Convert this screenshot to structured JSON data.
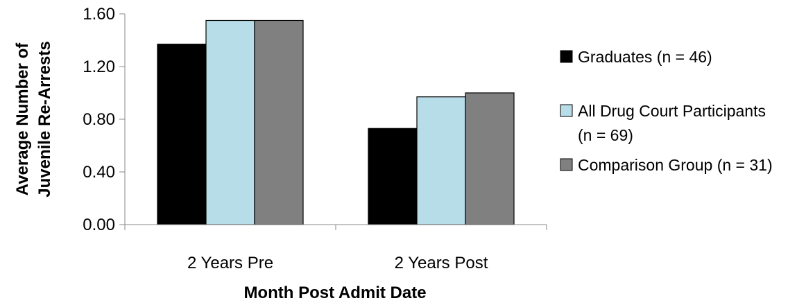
{
  "chart_data": {
    "type": "bar",
    "categories": [
      "2 Years Pre",
      "2 Years Post"
    ],
    "series": [
      {
        "name": "Graduates (n = 46)",
        "values": [
          1.37,
          0.73
        ],
        "color": "#000000"
      },
      {
        "name": "All Drug Court Participants (n = 69)",
        "legend_lines": [
          "All Drug Court Participants",
          "(n = 69)"
        ],
        "values": [
          1.55,
          0.97
        ],
        "color": "#b7dde8"
      },
      {
        "name": "Comparison Group (n = 31)",
        "values": [
          1.55,
          1.0
        ],
        "color": "#808080"
      }
    ],
    "ylim": [
      0,
      1.6
    ],
    "yticks": [
      "0.00",
      "0.40",
      "0.80",
      "1.20",
      "1.60"
    ],
    "ylabel_lines": [
      "Average Number of",
      "Juvenile Re-Arrests"
    ],
    "xlabel": "Month Post Admit Date",
    "grid": false,
    "legend_position": "right"
  }
}
